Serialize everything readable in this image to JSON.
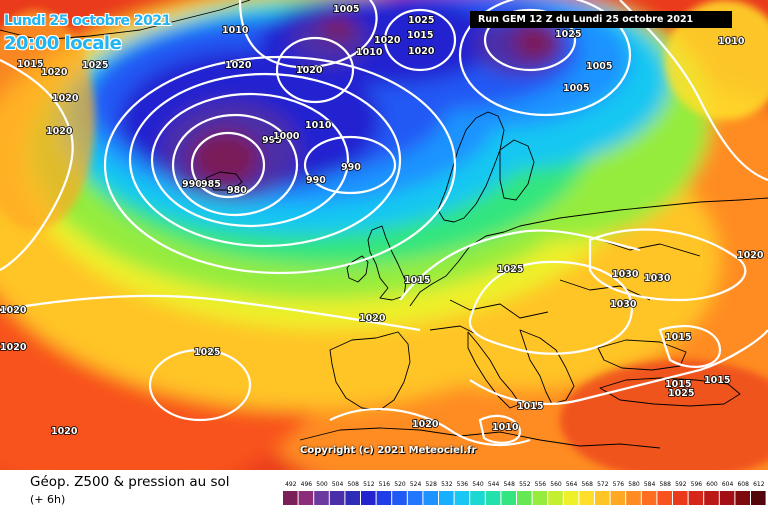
{
  "header": {
    "date": "Lundi 25 octobre 2021",
    "time": "20:00 locale",
    "run": "Run GEM 12 Z du Lundi 25 octobre 2021"
  },
  "footer": {
    "parameter": "Géop. Z500 & pression au sol",
    "forecast_step": "(+ 6h)",
    "copyright": "Copyright (c) 2021 Meteociel.fr"
  },
  "legend": {
    "values": [
      "492",
      "496",
      "500",
      "504",
      "508",
      "512",
      "516",
      "520",
      "524",
      "528",
      "532",
      "536",
      "540",
      "544",
      "548",
      "552",
      "556",
      "560",
      "564",
      "568",
      "572",
      "576",
      "580",
      "584",
      "588",
      "592",
      "596",
      "600",
      "604",
      "608",
      "612"
    ],
    "colors": [
      "#7a1f58",
      "#8c2d7a",
      "#6a3aa0",
      "#4b2fa8",
      "#2f2cb8",
      "#2323d0",
      "#1f3ee8",
      "#2059f4",
      "#2277ff",
      "#1e93ff",
      "#19afff",
      "#19c7f2",
      "#1bd8d2",
      "#22e1ab",
      "#33e57e",
      "#66e855",
      "#95ec3c",
      "#c4ef30",
      "#eef02a",
      "#ffdf2a",
      "#ffc426",
      "#ffa824",
      "#ff8c22",
      "#ff6e20",
      "#f8521e",
      "#ea3a1c",
      "#d6261a",
      "#bd1818",
      "#a30f14",
      "#7f0a0e",
      "#52050a"
    ]
  },
  "isobar_labels": [
    {
      "text": "1005"
    },
    {
      "text": "1025"
    },
    {
      "text": "1010"
    },
    {
      "text": "1015"
    },
    {
      "text": "1020"
    },
    {
      "text": "1025"
    },
    {
      "text": "1020"
    },
    {
      "text": "1020"
    },
    {
      "text": "1010"
    },
    {
      "text": "1020"
    },
    {
      "text": "1015"
    },
    {
      "text": "1020"
    },
    {
      "text": "1025"
    },
    {
      "text": "1005"
    },
    {
      "text": "1005"
    },
    {
      "text": "1010"
    },
    {
      "text": "1020"
    },
    {
      "text": "1020"
    },
    {
      "text": "1010"
    },
    {
      "text": "995"
    },
    {
      "text": "1000"
    },
    {
      "text": "990"
    },
    {
      "text": "985"
    },
    {
      "text": "980"
    },
    {
      "text": "990"
    },
    {
      "text": "990"
    },
    {
      "text": "1015"
    },
    {
      "text": "1025"
    },
    {
      "text": "1030"
    },
    {
      "text": "1030"
    },
    {
      "text": "1030"
    },
    {
      "text": "1020"
    },
    {
      "text": "1020"
    },
    {
      "text": "1020"
    },
    {
      "text": "1025"
    },
    {
      "text": "1020"
    },
    {
      "text": "1015"
    },
    {
      "text": "1015"
    },
    {
      "text": "1015"
    },
    {
      "text": "1015"
    },
    {
      "text": "1020"
    },
    {
      "text": "1010"
    },
    {
      "text": "1020"
    },
    {
      "text": "1025"
    }
  ]
}
